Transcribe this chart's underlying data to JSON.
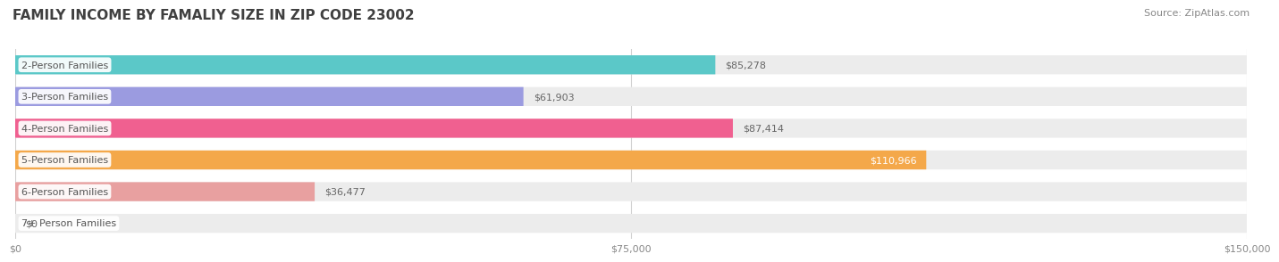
{
  "title": "FAMILY INCOME BY FAMALIY SIZE IN ZIP CODE 23002",
  "source": "Source: ZipAtlas.com",
  "categories": [
    "2-Person Families",
    "3-Person Families",
    "4-Person Families",
    "5-Person Families",
    "6-Person Families",
    "7+ Person Families"
  ],
  "values": [
    85278,
    61903,
    87414,
    110966,
    36477,
    0
  ],
  "bar_colors": [
    "#5BC8C8",
    "#9B9BE0",
    "#F06090",
    "#F4A84A",
    "#E8A0A0",
    "#A8C8E8"
  ],
  "bar_bg_color": "#ECECEC",
  "value_labels": [
    "$85,278",
    "$61,903",
    "$87,414",
    "$110,966",
    "$36,477",
    "$0"
  ],
  "value_inside": [
    false,
    false,
    false,
    true,
    false,
    false
  ],
  "xlim": [
    0,
    150000
  ],
  "xticks": [
    0,
    75000,
    150000
  ],
  "xtick_labels": [
    "$0",
    "$75,000",
    "$150,000"
  ],
  "title_fontsize": 11,
  "source_fontsize": 8,
  "label_fontsize": 8,
  "value_fontsize": 8,
  "tick_fontsize": 8,
  "background_color": "#FFFFFF",
  "title_color": "#404040",
  "label_color": "#555555",
  "value_label_color_dark": "#666666",
  "value_label_color_white": "#FFFFFF",
  "grid_color": "#D0D0D0"
}
